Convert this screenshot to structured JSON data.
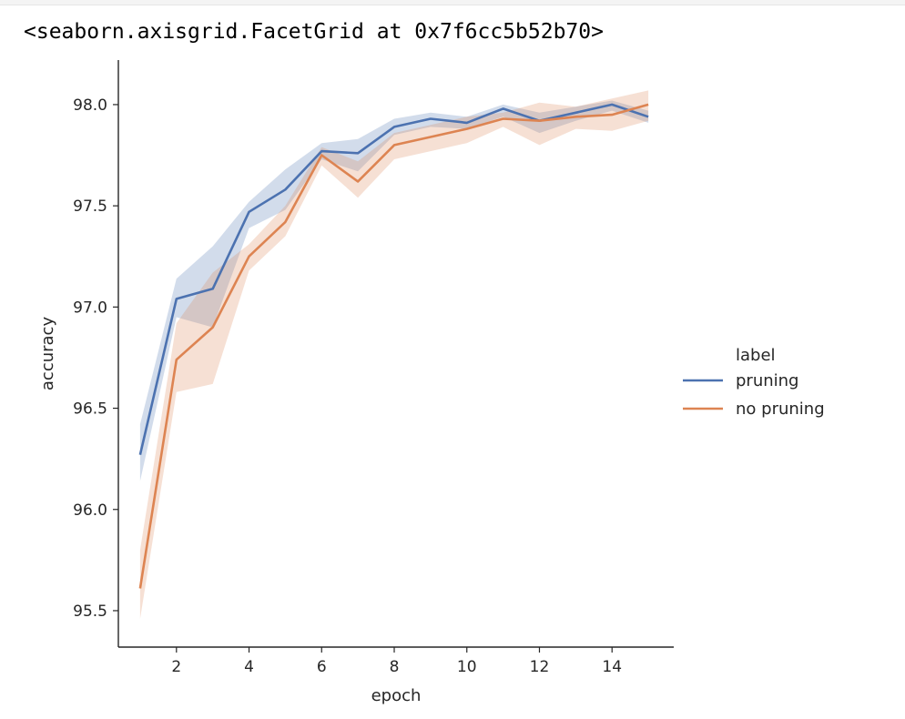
{
  "output": {
    "repr": "<seaborn.axisgrid.FacetGrid at 0x7f6cc5b52b70>"
  },
  "chart_data": {
    "type": "line",
    "xlabel": "epoch",
    "ylabel": "accuracy",
    "xlim": [
      0.4,
      15.7
    ],
    "ylim": [
      95.32,
      98.22
    ],
    "x_ticks": [
      2,
      4,
      6,
      8,
      10,
      12,
      14
    ],
    "y_ticks": [
      95.5,
      96.0,
      96.5,
      97.0,
      97.5,
      98.0
    ],
    "y_tick_labels": [
      "95.5",
      "96.0",
      "96.5",
      "97.0",
      "97.5",
      "98.0"
    ],
    "legend": {
      "title": "label",
      "placement": "center-right"
    },
    "x": [
      1,
      2,
      3,
      4,
      5,
      6,
      7,
      8,
      9,
      10,
      11,
      12,
      13,
      14,
      15
    ],
    "series": [
      {
        "name": "pruning",
        "color": "#4c72b0",
        "values": [
          96.27,
          97.04,
          97.09,
          97.47,
          97.58,
          97.77,
          97.76,
          97.89,
          97.93,
          97.91,
          97.98,
          97.92,
          97.96,
          98.0,
          97.94
        ],
        "ci_low": [
          96.14,
          96.95,
          96.9,
          97.39,
          97.48,
          97.73,
          97.67,
          97.85,
          97.89,
          97.88,
          97.94,
          97.86,
          97.92,
          97.97,
          97.91
        ],
        "ci_high": [
          96.42,
          97.14,
          97.3,
          97.52,
          97.68,
          97.81,
          97.83,
          97.93,
          97.96,
          97.94,
          98.0,
          97.96,
          97.99,
          98.02,
          97.97
        ]
      },
      {
        "name": "no pruning",
        "color": "#dd8452",
        "values": [
          95.61,
          96.74,
          96.9,
          97.25,
          97.42,
          97.75,
          97.62,
          97.8,
          97.84,
          97.88,
          97.93,
          97.92,
          97.94,
          97.95,
          98.0
        ],
        "ci_low": [
          95.46,
          96.58,
          96.62,
          97.18,
          97.35,
          97.7,
          97.54,
          97.73,
          97.77,
          97.81,
          97.89,
          97.8,
          97.88,
          97.87,
          97.92
        ],
        "ci_high": [
          95.8,
          96.92,
          97.17,
          97.31,
          97.5,
          97.79,
          97.72,
          97.86,
          97.9,
          97.94,
          97.96,
          98.01,
          97.99,
          98.03,
          98.07
        ]
      }
    ]
  }
}
